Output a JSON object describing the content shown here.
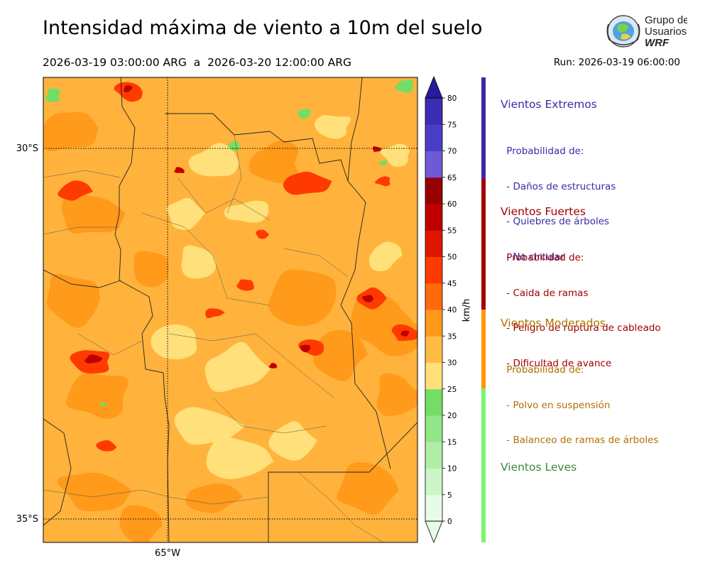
{
  "header": {
    "title": "Intensidad máxima de viento a 10m del suelo",
    "subtitle": "2026-03-19 03:00:00 ARG  a  2026-03-20 12:00:00 ARG",
    "run": "Run: 2026-03-19 06:00:00"
  },
  "logo": {
    "line1": "Grupo de",
    "line2": "Usuarios",
    "line3": "WRF"
  },
  "map": {
    "lat_labels": [
      "30°S",
      "35°S"
    ],
    "lon_labels": [
      "65°W"
    ],
    "background_color": "#ffb33d"
  },
  "colorbar": {
    "unit": "km/h",
    "ticks": [
      "0",
      "5",
      "10",
      "15",
      "20",
      "25",
      "30",
      "35",
      "40",
      "45",
      "50",
      "55",
      "60",
      "65",
      "70",
      "75",
      "80"
    ],
    "colors": [
      "#e8fbe6",
      "#ccf5c8",
      "#b0eea8",
      "#93e688",
      "#74dd63",
      "#ffe07a",
      "#ffbb44",
      "#ff9a1a",
      "#ff6a0a",
      "#ff3a00",
      "#e01600",
      "#bf0000",
      "#990000",
      "#6e5ad6",
      "#4b3ec6",
      "#3b2db3",
      "#2a1a9e"
    ]
  },
  "categories": [
    {
      "title": "Vientos Extremos",
      "color": "#3a2aa8",
      "bar_color": "#3a2aa8",
      "desc": [
        " Probabilidad de:",
        " - Daños de estructuras",
        " - Quiebres de árboles",
        " - No circular"
      ]
    },
    {
      "title": "Vientos Fuertes",
      "color": "#a00000",
      "bar_color": "#a00000",
      "desc": [
        " Probabilidad de:",
        " - Caida de ramas",
        " - Peligro de ruptura de cableado",
        " - Dificultad de avance"
      ]
    },
    {
      "title": "Vientos Moderados",
      "color": "#b07000",
      "bar_color": "#ff9900",
      "desc": [
        " Probabilidad de:",
        " - Polvo en suspensión",
        " - Balanceo de ramas de árboles"
      ]
    },
    {
      "title": "Vientos Leves",
      "color": "#3a8a3a",
      "bar_color": "#7cf470",
      "desc": []
    }
  ]
}
